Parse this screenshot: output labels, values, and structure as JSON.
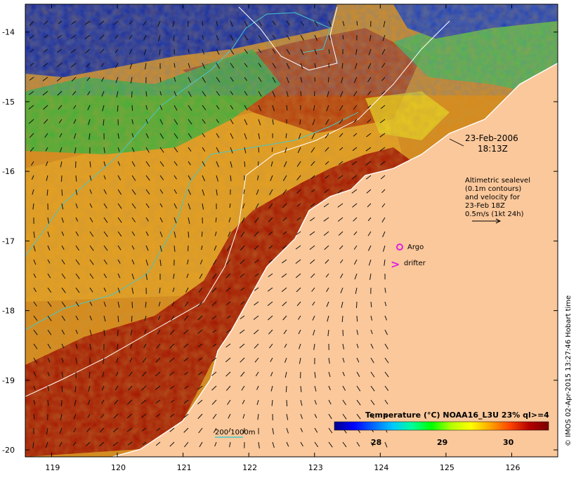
{
  "map": {
    "date": "23-Feb-2006",
    "time": "18:13Z",
    "lon_ticks": [
      "119",
      "120",
      "121",
      "122",
      "123",
      "124",
      "125",
      "126"
    ],
    "lat_ticks": [
      "-14",
      "-15",
      "-16",
      "-17",
      "-18",
      "-19",
      "-20"
    ],
    "extent": {
      "lon": [
        118.6,
        126.7
      ],
      "lat": [
        -13.6,
        -20.1
      ]
    },
    "colors": {
      "land": "#fbc89b",
      "sst_hot": "#a71500",
      "sst_warm": "#d06a18",
      "sst_mid": "#e8a11c",
      "sst_cool": "#2db838",
      "sst_cold": "#0a18a0",
      "contour_200m": "#46c8c8",
      "contour_sealevel": "#ffffff",
      "marker": "#e020e0"
    }
  },
  "legend": {
    "altimetry_lines": [
      "Altimetric sealevel",
      "(0.1m contours)",
      "and velocity for",
      "23-Feb 18Z",
      "0.5m/s (1kt 24h)"
    ],
    "argo_label": "Argo",
    "drifter_label": "drifter",
    "drifter_symbol": ">",
    "bathymetry_label": "200  1000m"
  },
  "colorbar": {
    "title": "Temperature (°C) NOAA16_L3U 23% ql>=4",
    "ticks": [
      "28",
      "29",
      "30"
    ],
    "stops": [
      "#00008b",
      "#0000ff",
      "#0066ff",
      "#00c8ff",
      "#00ff99",
      "#00ff00",
      "#b4ff00",
      "#ffff00",
      "#ffa500",
      "#ff4500",
      "#b40000",
      "#7a0000"
    ]
  },
  "credit": "© IMOS 02-Apr-2015 13:27:46 Hobart time"
}
